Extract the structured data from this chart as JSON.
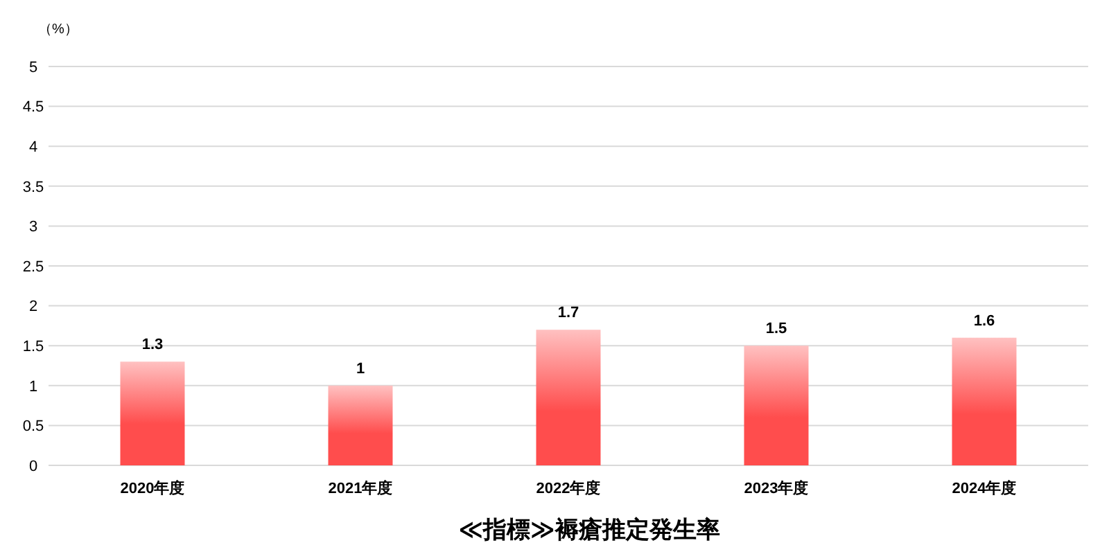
{
  "chart_data": {
    "type": "bar",
    "title": "≪指標≫褥瘡推定発生率",
    "ylabel": "（%）",
    "categories": [
      "2020年度",
      "2021年度",
      "2022年度",
      "2023年度",
      "2024年度"
    ],
    "values": [
      1.3,
      1,
      1.7,
      1.5,
      1.6
    ],
    "color": "#ff4d4d",
    "ylim": [
      0,
      5
    ],
    "yticks": [
      0,
      0.5,
      1,
      1.5,
      2,
      2.5,
      3,
      3.5,
      4,
      4.5,
      5
    ],
    "grid": "y",
    "data_labels": true
  }
}
